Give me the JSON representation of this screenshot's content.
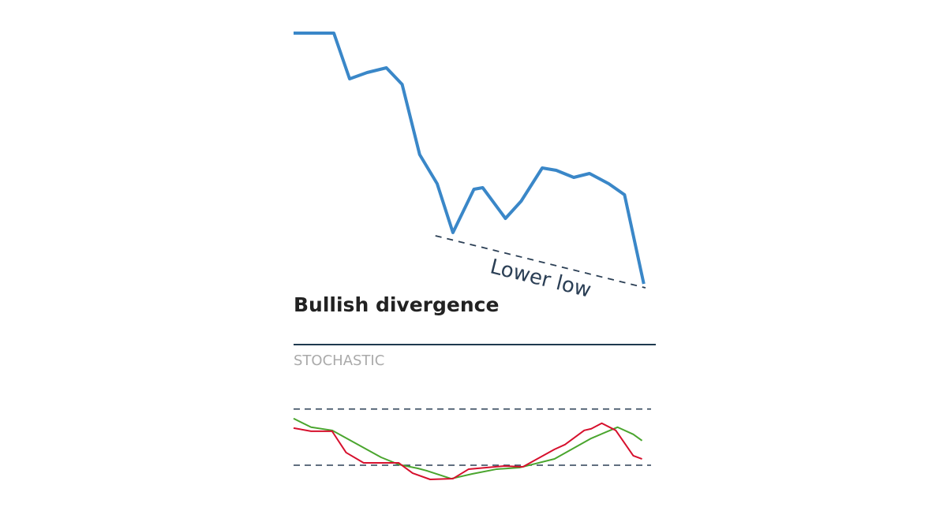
{
  "chart_data": [
    {
      "type": "line",
      "title": "Bullish divergence",
      "xlim": [
        0,
        20.1
      ],
      "ylim": [
        0,
        360
      ],
      "series": [
        {
          "color": "#3a87c8",
          "x": [
            0,
            1.2,
            2.3,
            3.2,
            4.2,
            5.3,
            6.2,
            7.2,
            8.2,
            9.1,
            10.3,
            10.8,
            12.1,
            13,
            14.2,
            15,
            16,
            16.9,
            18,
            18.9,
            20
          ],
          "values": [
            358,
            358,
            358,
            300,
            308,
            314,
            293,
            204,
            167,
            105,
            160,
            162,
            123,
            145,
            187,
            184,
            175,
            180,
            167,
            153,
            40
          ]
        }
      ],
      "trendline": {
        "x": [
          8.1,
          20.1
        ],
        "values": [
          101,
          35
        ],
        "label": "Lower low",
        "color": "#2b3f55"
      }
    },
    {
      "type": "line",
      "title": "STOCHASTIC",
      "xlim": [
        0,
        20.1
      ],
      "ylim": [
        0,
        100
      ],
      "levels": [
        80,
        20
      ],
      "level_color": "#2b3f55",
      "series": [
        {
          "color": "#4aa52e",
          "x": [
            0,
            1,
            2.2,
            5,
            6,
            7.1,
            7.6,
            9,
            10.2,
            11.6,
            12.9,
            14.9,
            17,
            18.5,
            19.4,
            19.9
          ],
          "values": [
            69.9,
            60.6,
            57.2,
            28.4,
            20.8,
            16.6,
            14.1,
            5.6,
            10.7,
            15.8,
            17.4,
            26.7,
            48.7,
            60.6,
            53,
            46.2
          ]
        },
        {
          "color": "#d6102d",
          "x": [
            0,
            1,
            2.2,
            3,
            4,
            6,
            6.8,
            7.8,
            9.1,
            10,
            12,
            13.1,
            14.9,
            15.5,
            16.6,
            17,
            17.6,
            18.4,
            19.4,
            19.9
          ],
          "values": [
            59.7,
            56.3,
            56.3,
            33.5,
            22.5,
            22.5,
            11.5,
            4.8,
            5.6,
            15.8,
            19.1,
            18.3,
            36.9,
            42,
            57.2,
            58.9,
            64.8,
            57.2,
            30.1,
            26.7
          ]
        }
      ]
    }
  ]
}
